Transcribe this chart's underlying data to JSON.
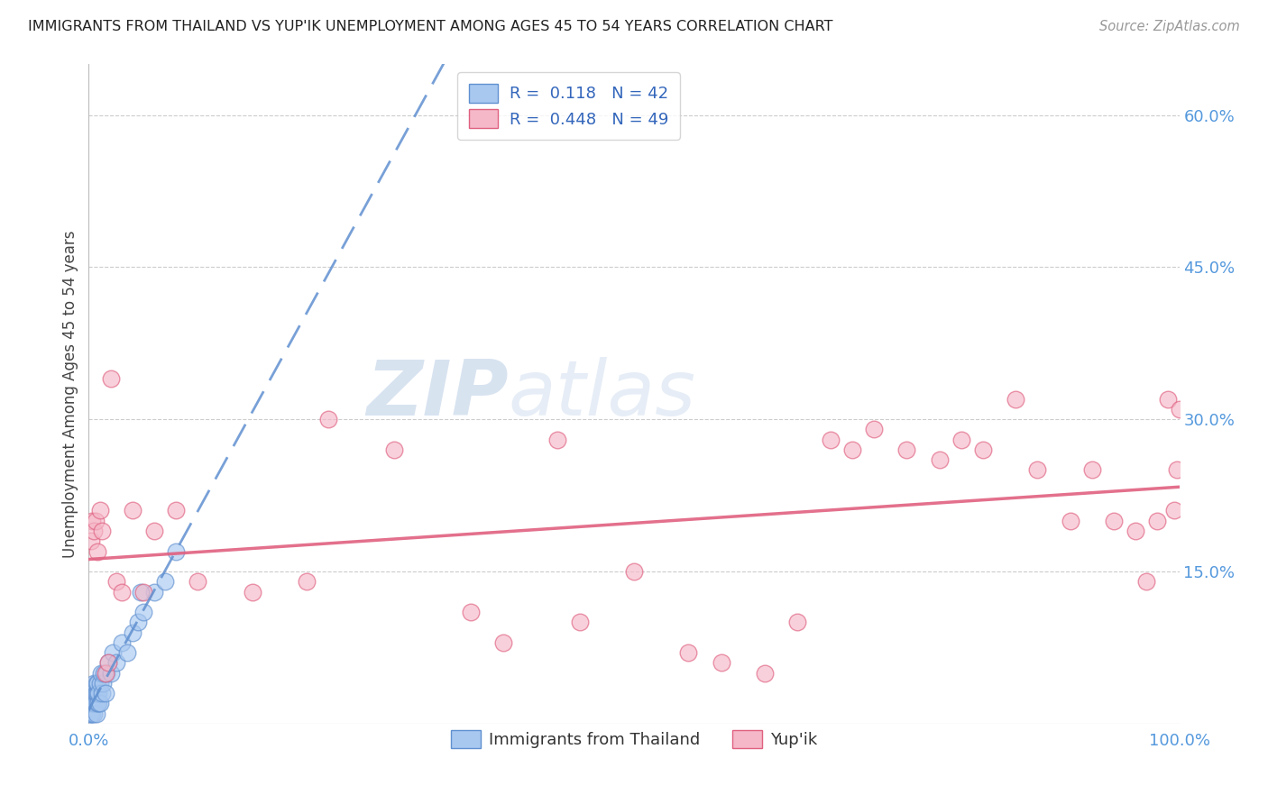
{
  "title": "IMMIGRANTS FROM THAILAND VS YUP'IK UNEMPLOYMENT AMONG AGES 45 TO 54 YEARS CORRELATION CHART",
  "source": "Source: ZipAtlas.com",
  "xlabel_blue": "Immigrants from Thailand",
  "xlabel_pink": "Yup'ik",
  "ylabel": "Unemployment Among Ages 45 to 54 years",
  "xlim": [
    0.0,
    1.0
  ],
  "ylim": [
    0.0,
    0.65
  ],
  "xticks": [
    0.0,
    0.25,
    0.5,
    0.75,
    1.0
  ],
  "xtick_labels": [
    "0.0%",
    "",
    "",
    "",
    "100.0%"
  ],
  "ytick_labels_right": [
    "60.0%",
    "45.0%",
    "30.0%",
    "15.0%"
  ],
  "yticks_right": [
    0.6,
    0.45,
    0.3,
    0.15
  ],
  "legend_blue_R": "0.118",
  "legend_blue_N": "42",
  "legend_pink_R": "0.448",
  "legend_pink_N": "49",
  "blue_color": "#a8c8f0",
  "pink_color": "#f5b8c8",
  "blue_line_color": "#6090d0",
  "pink_line_color": "#e06080",
  "watermark_zip": "ZIP",
  "watermark_atlas": "atlas",
  "blue_scatter_x": [
    0.001,
    0.002,
    0.002,
    0.003,
    0.003,
    0.003,
    0.004,
    0.004,
    0.005,
    0.005,
    0.005,
    0.006,
    0.006,
    0.007,
    0.007,
    0.007,
    0.008,
    0.008,
    0.008,
    0.009,
    0.009,
    0.01,
    0.01,
    0.011,
    0.012,
    0.013,
    0.014,
    0.015,
    0.016,
    0.018,
    0.02,
    0.022,
    0.025,
    0.03,
    0.035,
    0.04,
    0.045,
    0.05,
    0.06,
    0.07,
    0.08,
    0.048
  ],
  "blue_scatter_y": [
    0.01,
    0.02,
    0.01,
    0.02,
    0.01,
    0.03,
    0.02,
    0.03,
    0.01,
    0.02,
    0.04,
    0.02,
    0.03,
    0.01,
    0.03,
    0.04,
    0.02,
    0.03,
    0.04,
    0.02,
    0.03,
    0.02,
    0.04,
    0.05,
    0.03,
    0.04,
    0.05,
    0.03,
    0.05,
    0.06,
    0.05,
    0.07,
    0.06,
    0.08,
    0.07,
    0.09,
    0.1,
    0.11,
    0.13,
    0.14,
    0.17,
    0.13
  ],
  "pink_scatter_x": [
    0.002,
    0.003,
    0.005,
    0.006,
    0.008,
    0.01,
    0.012,
    0.015,
    0.018,
    0.02,
    0.025,
    0.03,
    0.04,
    0.05,
    0.06,
    0.08,
    0.1,
    0.15,
    0.2,
    0.22,
    0.28,
    0.35,
    0.38,
    0.45,
    0.5,
    0.55,
    0.58,
    0.62,
    0.65,
    0.68,
    0.7,
    0.72,
    0.75,
    0.78,
    0.8,
    0.82,
    0.85,
    0.87,
    0.9,
    0.92,
    0.94,
    0.96,
    0.97,
    0.98,
    0.99,
    0.995,
    0.998,
    1.0,
    0.43
  ],
  "pink_scatter_y": [
    0.18,
    0.2,
    0.19,
    0.2,
    0.17,
    0.21,
    0.19,
    0.05,
    0.06,
    0.34,
    0.14,
    0.13,
    0.21,
    0.13,
    0.19,
    0.21,
    0.14,
    0.13,
    0.14,
    0.3,
    0.27,
    0.11,
    0.08,
    0.1,
    0.15,
    0.07,
    0.06,
    0.05,
    0.1,
    0.28,
    0.27,
    0.29,
    0.27,
    0.26,
    0.28,
    0.27,
    0.32,
    0.25,
    0.2,
    0.25,
    0.2,
    0.19,
    0.14,
    0.2,
    0.32,
    0.21,
    0.25,
    0.31,
    0.28
  ],
  "blue_line_intercept": 0.03,
  "blue_line_slope": 0.215,
  "pink_line_intercept": 0.06,
  "pink_line_slope": 0.19
}
